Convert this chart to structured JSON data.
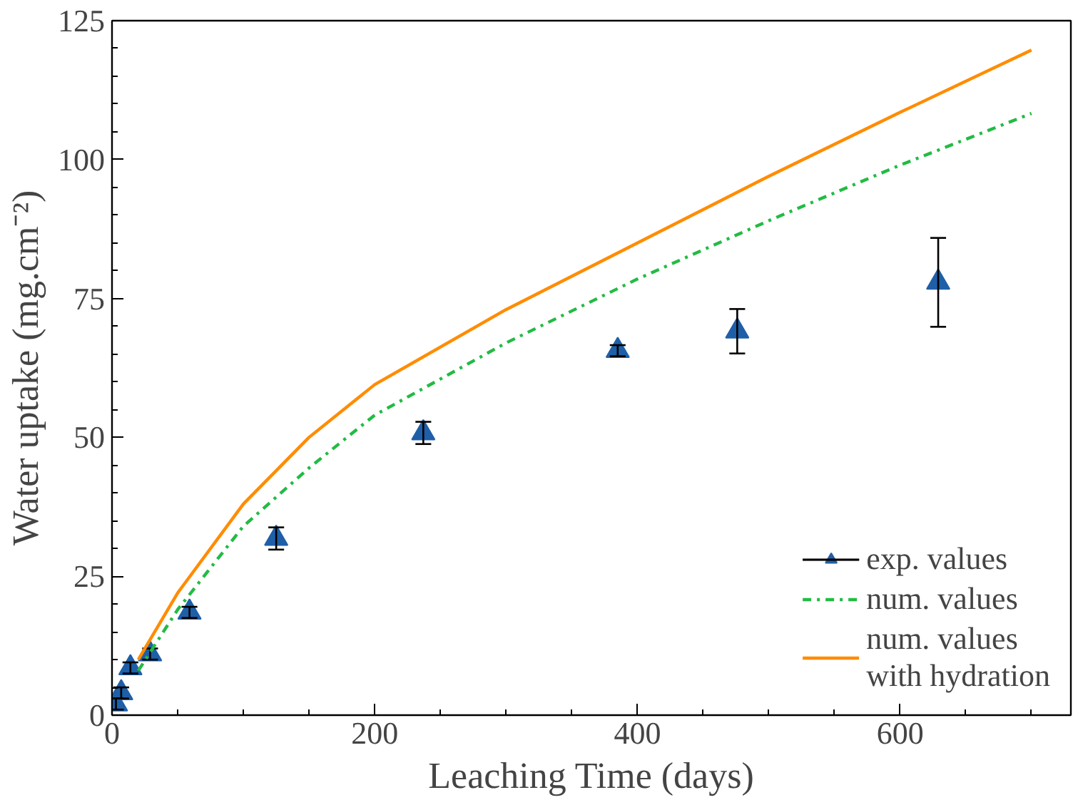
{
  "chart_data": {
    "type": "scatter",
    "xlabel": "Leaching Time (days)",
    "ylabel": "Water uptake (mg.cm⁻²)",
    "xlim": [
      0,
      730
    ],
    "ylim": [
      0,
      125
    ],
    "xticks": [
      0,
      200,
      400,
      600
    ],
    "yticks": [
      0,
      25,
      50,
      75,
      100,
      125
    ],
    "grid": false,
    "legend": "bottom right",
    "series": [
      {
        "name": "exp. values",
        "type": "scatter",
        "marker": "triangle",
        "color": "#1f5fa8",
        "x": [
          3,
          7,
          14,
          29,
          59,
          125,
          237,
          385,
          476,
          629
        ],
        "values": [
          2,
          4,
          8.5,
          11,
          18.5,
          31.8,
          50.8,
          65.6,
          69.1,
          77.9
        ],
        "errors": [
          1,
          1,
          1,
          1,
          1,
          2,
          2,
          1,
          4,
          8
        ]
      },
      {
        "name": "num. values",
        "type": "line",
        "line_style": "dashdot",
        "color": "#22bb44",
        "x": [
          20,
          50,
          100,
          150,
          200,
          300,
          400,
          500,
          600,
          700
        ],
        "values": [
          8,
          19,
          34,
          44.5,
          54,
          67,
          78.5,
          89,
          99,
          108.3
        ]
      },
      {
        "name": "num. values\nwith hydration",
        "type": "line",
        "line_style": "solid",
        "color": "#ff8c00",
        "x": [
          20,
          50,
          100,
          150,
          200,
          300,
          400,
          500,
          600,
          700
        ],
        "values": [
          10,
          22,
          38,
          50,
          59.5,
          73,
          85,
          97,
          108.5,
          119.7
        ]
      }
    ]
  }
}
